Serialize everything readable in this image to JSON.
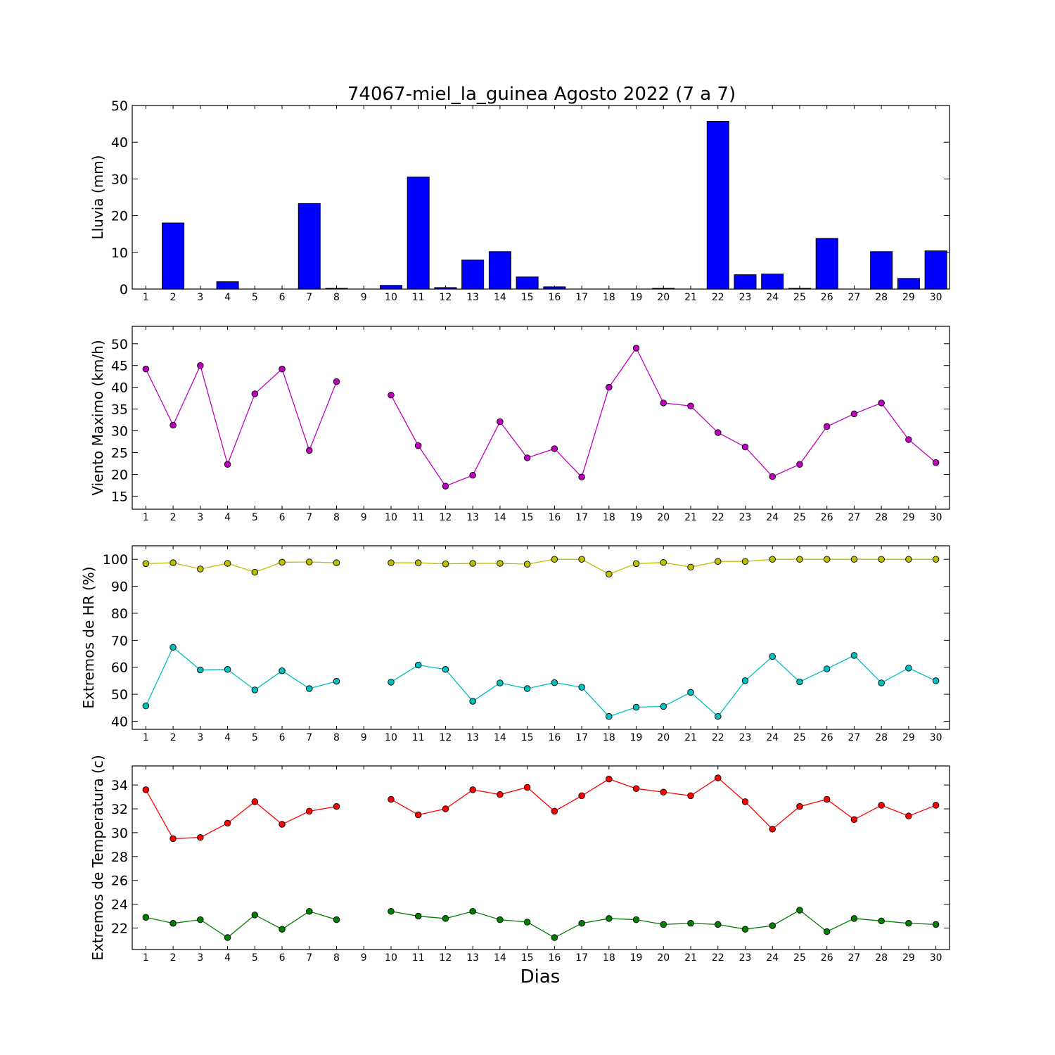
{
  "chart_data": [
    {
      "type": "bar",
      "title": "74067-miel_la_guinea Agosto 2022  (7 a 7)",
      "ylabel": "Lluvia (mm)",
      "xlabel": "",
      "categories": [
        "1",
        "2",
        "3",
        "4",
        "5",
        "6",
        "7",
        "8",
        "9",
        "10",
        "11",
        "12",
        "13",
        "14",
        "15",
        "16",
        "17",
        "18",
        "19",
        "20",
        "21",
        "22",
        "23",
        "24",
        "25",
        "26",
        "27",
        "28",
        "29",
        "30"
      ],
      "values": [
        0,
        18.0,
        0,
        2.0,
        0,
        0,
        23.3,
        0.2,
        0,
        1.0,
        30.5,
        0.4,
        7.9,
        10.2,
        3.3,
        0.6,
        0,
        0,
        0,
        0.2,
        0,
        45.7,
        3.9,
        4.1,
        0.2,
        13.8,
        0,
        10.2,
        2.9,
        10.4
      ],
      "ylim": [
        0,
        50
      ],
      "yticks": [
        0,
        10,
        20,
        30,
        40,
        50
      ],
      "colors": {
        "bar": "#0000ff"
      }
    },
    {
      "type": "line",
      "ylabel": "Viento Maximo (km/h)",
      "xlabel": "",
      "x": [
        1,
        2,
        3,
        4,
        5,
        6,
        7,
        8,
        9,
        10,
        11,
        12,
        13,
        14,
        15,
        16,
        17,
        18,
        19,
        20,
        21,
        22,
        23,
        24,
        25,
        26,
        27,
        28,
        29,
        30
      ],
      "series": [
        {
          "color": "#bf00bf",
          "values": [
            44.2,
            31.3,
            45.0,
            22.3,
            38.5,
            44.2,
            25.5,
            41.3,
            null,
            38.2,
            26.6,
            17.3,
            19.8,
            32.1,
            23.8,
            25.9,
            19.4,
            40.0,
            49.0,
            36.4,
            35.7,
            29.6,
            26.3,
            19.5,
            22.3,
            31.0,
            33.9,
            36.4,
            28.0,
            22.7
          ]
        }
      ],
      "ylim": [
        12,
        54
      ],
      "yticks": [
        15,
        20,
        25,
        30,
        35,
        40,
        45,
        50
      ],
      "xticks": [
        "1",
        "2",
        "3",
        "4",
        "5",
        "6",
        "7",
        "8",
        "9",
        "10",
        "11",
        "12",
        "13",
        "14",
        "15",
        "16",
        "17",
        "18",
        "19",
        "20",
        "21",
        "22",
        "23",
        "24",
        "25",
        "26",
        "27",
        "28",
        "29",
        "30"
      ]
    },
    {
      "type": "line",
      "ylabel": "Extremos de HR (%)",
      "xlabel": "",
      "x": [
        1,
        2,
        3,
        4,
        5,
        6,
        7,
        8,
        9,
        10,
        11,
        12,
        13,
        14,
        15,
        16,
        17,
        18,
        19,
        20,
        21,
        22,
        23,
        24,
        25,
        26,
        27,
        28,
        29,
        30
      ],
      "series": [
        {
          "color": "#bfbf00",
          "values": [
            98.4,
            98.7,
            96.4,
            98.5,
            95.2,
            98.9,
            99.0,
            98.7,
            null,
            98.7,
            98.7,
            98.3,
            98.5,
            98.5,
            98.2,
            100,
            100,
            94.5,
            98.4,
            98.8,
            97.1,
            99.2,
            99.2,
            100,
            100,
            100,
            100,
            100,
            100,
            100
          ]
        },
        {
          "color": "#00bfbf",
          "values": [
            45.7,
            67.4,
            59.0,
            59.2,
            51.6,
            58.7,
            52.1,
            54.8,
            null,
            54.5,
            60.8,
            59.2,
            47.4,
            54.2,
            52.1,
            54.3,
            52.6,
            41.8,
            45.2,
            45.5,
            50.7,
            41.8,
            55.0,
            64.0,
            54.6,
            59.4,
            64.4,
            54.2,
            59.7,
            55.0
          ]
        }
      ],
      "ylim": [
        37,
        105
      ],
      "yticks": [
        40,
        50,
        60,
        70,
        80,
        90,
        100
      ],
      "xticks": [
        "1",
        "2",
        "3",
        "4",
        "5",
        "6",
        "7",
        "8",
        "9",
        "10",
        "11",
        "12",
        "13",
        "14",
        "15",
        "16",
        "17",
        "18",
        "19",
        "20",
        "21",
        "22",
        "23",
        "24",
        "25",
        "26",
        "27",
        "28",
        "29",
        "30"
      ]
    },
    {
      "type": "line",
      "ylabel": "Extremos de Temperatura (c)",
      "xlabel": "Dias",
      "x": [
        1,
        2,
        3,
        4,
        5,
        6,
        7,
        8,
        9,
        10,
        11,
        12,
        13,
        14,
        15,
        16,
        17,
        18,
        19,
        20,
        21,
        22,
        23,
        24,
        25,
        26,
        27,
        28,
        29,
        30
      ],
      "series": [
        {
          "color": "#ff0000",
          "values": [
            33.6,
            29.5,
            29.6,
            30.8,
            32.6,
            30.7,
            31.8,
            32.2,
            null,
            32.8,
            31.5,
            32.0,
            33.6,
            33.2,
            33.8,
            31.8,
            33.1,
            34.5,
            33.7,
            33.4,
            33.1,
            34.6,
            32.6,
            30.3,
            32.2,
            32.8,
            31.1,
            32.3,
            31.4,
            32.3
          ]
        },
        {
          "color": "#007f00",
          "values": [
            22.9,
            22.4,
            22.7,
            21.2,
            23.1,
            21.9,
            23.4,
            22.7,
            null,
            23.4,
            23.0,
            22.8,
            23.4,
            22.7,
            22.5,
            21.2,
            22.4,
            22.8,
            22.7,
            22.3,
            22.4,
            22.3,
            21.9,
            22.2,
            23.5,
            21.7,
            22.8,
            22.6,
            22.4,
            22.3
          ]
        }
      ],
      "ylim": [
        20.2,
        35.6
      ],
      "yticks": [
        22,
        24,
        26,
        28,
        30,
        32,
        34
      ],
      "xticks": [
        "1",
        "2",
        "3",
        "4",
        "5",
        "6",
        "7",
        "8",
        "9",
        "10",
        "11",
        "12",
        "13",
        "14",
        "15",
        "16",
        "17",
        "18",
        "19",
        "20",
        "21",
        "22",
        "23",
        "24",
        "25",
        "26",
        "27",
        "28",
        "29",
        "30"
      ]
    }
  ]
}
